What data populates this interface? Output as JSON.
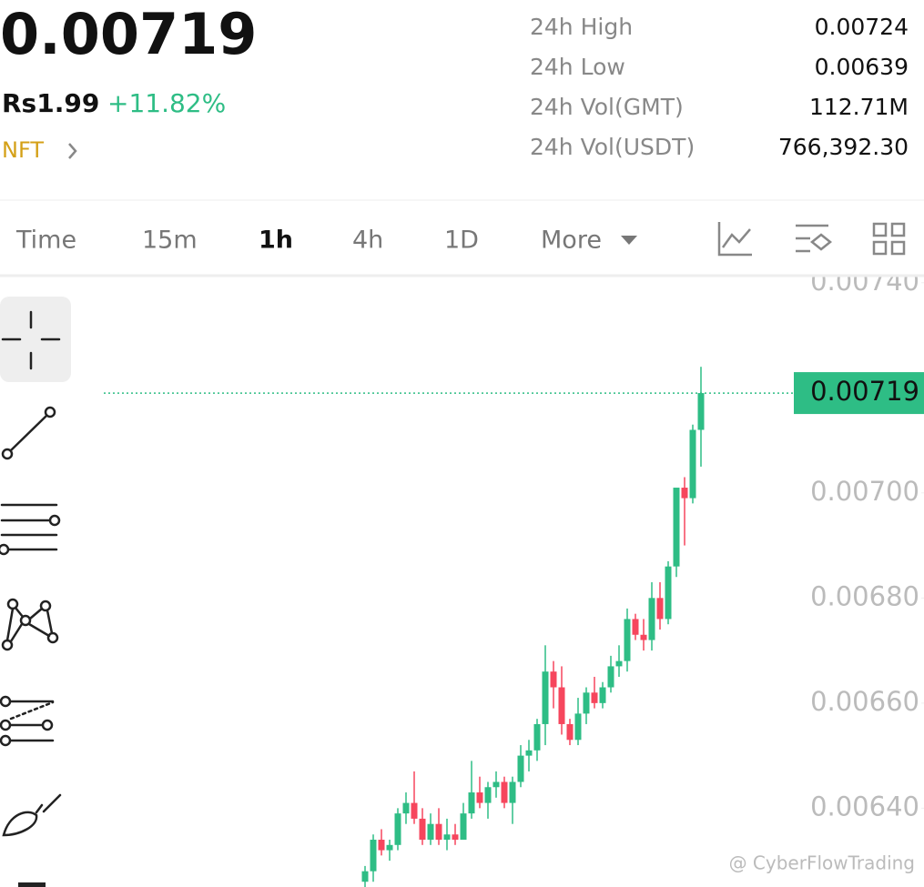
{
  "header": {
    "price": "0.00719",
    "fiat": "Rs1.99",
    "change": "+11.82%",
    "tag": "NFT",
    "stats": [
      {
        "label": "24h High",
        "value": "0.00724"
      },
      {
        "label": "24h Low",
        "value": "0.00639"
      },
      {
        "label": "24h Vol(GMT)",
        "value": "112.71M"
      },
      {
        "label": "24h Vol(USDT)",
        "value": "766,392.30"
      }
    ]
  },
  "tabs": [
    "Time",
    "15m",
    "1h",
    "4h",
    "1D",
    "More"
  ],
  "active_tab": 2,
  "watermark": "@ CyberFlowTrading",
  "chart_data": {
    "type": "candlestick",
    "open": [
      0.00626,
      0.00628,
      0.00634,
      0.00632,
      0.00633,
      0.00639,
      0.00641,
      0.00638,
      0.00634,
      0.00637,
      0.00634,
      0.00635,
      0.00634,
      0.00639,
      0.00643,
      0.00641,
      0.00644,
      0.00645,
      0.00641,
      0.00645,
      0.0065,
      0.00651,
      0.00656,
      0.00666,
      0.00663,
      0.00656,
      0.00653,
      0.00658,
      0.00662,
      0.0066,
      0.00663,
      0.00667,
      0.00668,
      0.00676,
      0.00673,
      0.00672,
      0.0068,
      0.00676,
      0.00686,
      0.00701,
      0.00699,
      0.00712
    ],
    "high": [
      0.00629,
      0.00635,
      0.00636,
      0.00634,
      0.0064,
      0.00643,
      0.00647,
      0.0064,
      0.00639,
      0.0064,
      0.00638,
      0.00637,
      0.00641,
      0.00649,
      0.00646,
      0.00645,
      0.00647,
      0.00646,
      0.00646,
      0.00652,
      0.00653,
      0.00657,
      0.00671,
      0.00668,
      0.00667,
      0.00657,
      0.00661,
      0.00663,
      0.00665,
      0.00664,
      0.00669,
      0.00671,
      0.00678,
      0.00677,
      0.00676,
      0.00683,
      0.00683,
      0.00687,
      0.007,
      0.00703,
      0.00713,
      0.00724
    ],
    "low": [
      0.00625,
      0.00626,
      0.00631,
      0.0063,
      0.00632,
      0.00637,
      0.00637,
      0.00633,
      0.00633,
      0.00633,
      0.00632,
      0.00633,
      0.00634,
      0.00638,
      0.0064,
      0.00638,
      0.00642,
      0.0064,
      0.00637,
      0.00644,
      0.00647,
      0.00649,
      0.00652,
      0.00659,
      0.00654,
      0.00652,
      0.00652,
      0.00656,
      0.00659,
      0.00659,
      0.00662,
      0.00665,
      0.00666,
      0.00672,
      0.0067,
      0.0067,
      0.00674,
      0.00675,
      0.00684,
      0.0069,
      0.00698,
      0.00705
    ],
    "close": [
      0.00628,
      0.00634,
      0.00632,
      0.00633,
      0.00639,
      0.00641,
      0.00638,
      0.00634,
      0.00637,
      0.00634,
      0.00635,
      0.00634,
      0.00639,
      0.00643,
      0.00641,
      0.00644,
      0.00645,
      0.00641,
      0.00645,
      0.0065,
      0.00651,
      0.00656,
      0.00666,
      0.00663,
      0.00656,
      0.00653,
      0.00658,
      0.00662,
      0.0066,
      0.00663,
      0.00667,
      0.00668,
      0.00676,
      0.00673,
      0.00672,
      0.0068,
      0.00676,
      0.00686,
      0.00701,
      0.00699,
      0.00712,
      0.00719
    ],
    "up_color": "#2ebd85",
    "down_color": "#f6465d",
    "ylim": [
      0.00625,
      0.00741
    ],
    "yticks": [
      {
        "value": 0.0064,
        "label": "0.00640"
      },
      {
        "value": 0.0066,
        "label": "0.00660"
      },
      {
        "value": 0.0068,
        "label": "0.00680"
      },
      {
        "value": 0.007,
        "label": "0.00700"
      },
      {
        "value": 0.0074,
        "label": "0.00740"
      }
    ],
    "last_price": 0.00719
  }
}
